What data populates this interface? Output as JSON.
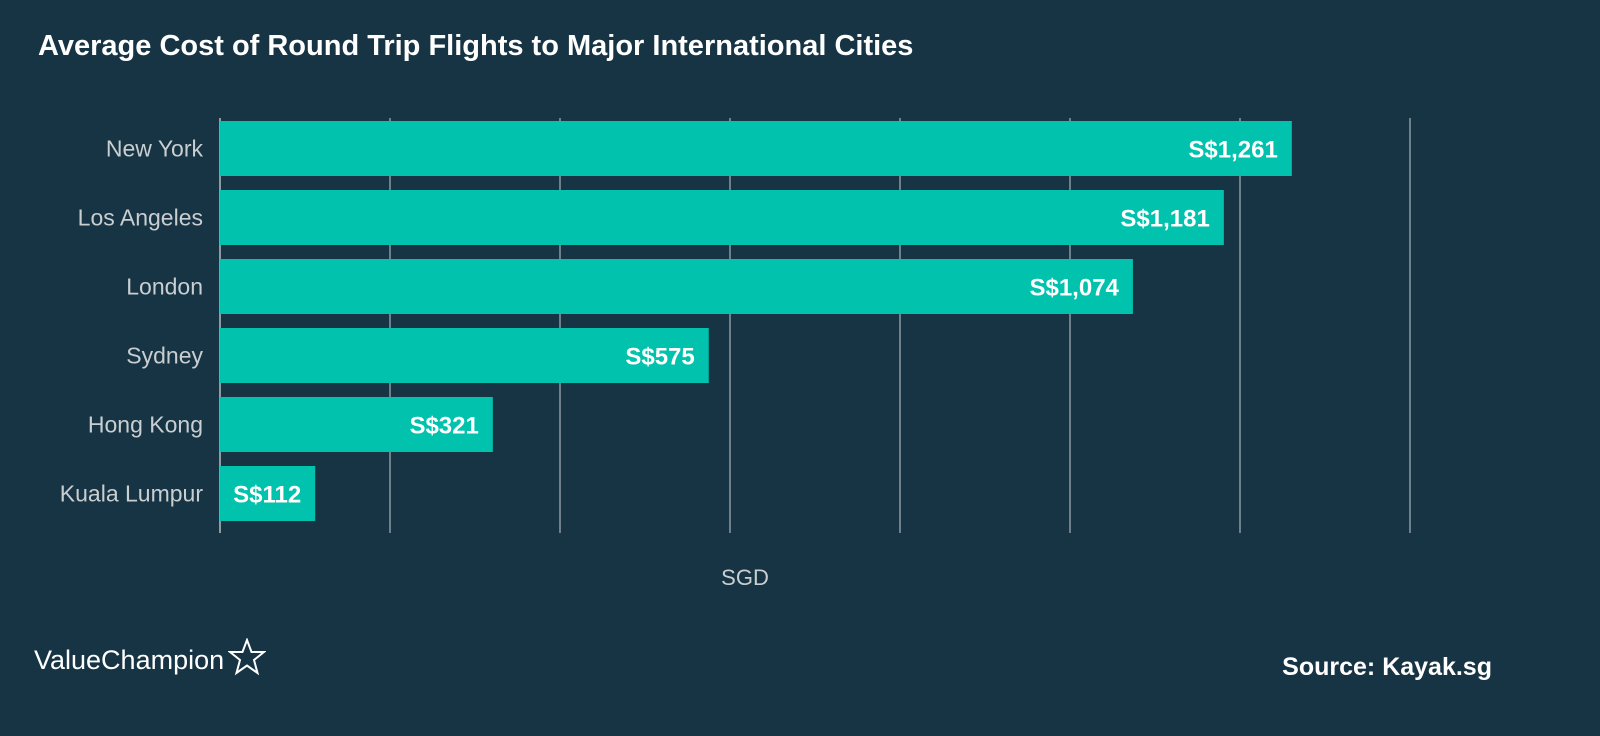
{
  "chart_data": {
    "type": "bar",
    "orientation": "horizontal",
    "title": "Average Cost of Round Trip Flights to Major International Cities",
    "xlabel": "SGD",
    "ylabel": "",
    "categories": [
      "New York",
      "Los Angeles",
      "London",
      "Sydney",
      "Hong Kong",
      "Kuala Lumpur"
    ],
    "values": [
      1261,
      1181,
      1074,
      575,
      321,
      112
    ],
    "value_labels": [
      "S$1,261",
      "S$1,181",
      "S$1,074",
      "S$575",
      "S$321",
      "S$112"
    ],
    "xlim": [
      0,
      1400
    ],
    "gridlines": [
      0,
      200,
      400,
      600,
      800,
      1000,
      1200,
      1400
    ],
    "grid": true,
    "legend": "none"
  },
  "footer": {
    "brand": "ValueChampion",
    "source": "Source: Kayak.sg"
  },
  "colors": {
    "background": "#163443",
    "bar": "#00c2ad",
    "grid": "#8c9aa2",
    "text": "#ffffff",
    "muted_text": "#c9ced1"
  },
  "icons": {
    "brand_mark": "star-outline-icon"
  }
}
